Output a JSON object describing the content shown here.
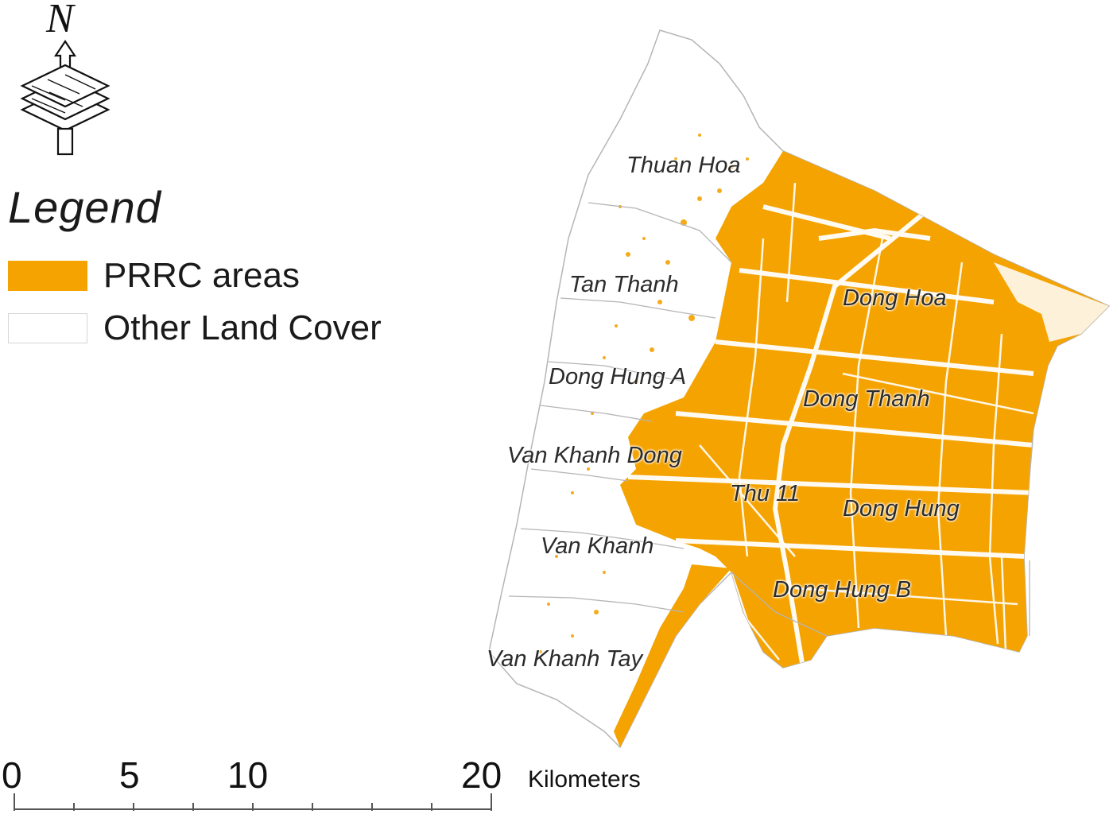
{
  "north_arrow": {
    "letter": "N"
  },
  "legend": {
    "title": "Legend",
    "items": [
      {
        "label": "PRRC areas",
        "color": "#f5a300"
      },
      {
        "label": "Other Land Cover",
        "color": "#ffffff"
      }
    ]
  },
  "places": [
    "Thuan Hoa",
    "Tan Thanh",
    "Dong Hoa",
    "Dong Hung A",
    "Dong Thanh",
    "Van Khanh Dong",
    "Thu 11",
    "Dong Hung",
    "Van Khanh",
    "Dong Hung B",
    "Van Khanh Tay"
  ],
  "scale_bar": {
    "ticks": [
      "0",
      "5",
      "10",
      "20"
    ],
    "unit": "Kilometers"
  }
}
